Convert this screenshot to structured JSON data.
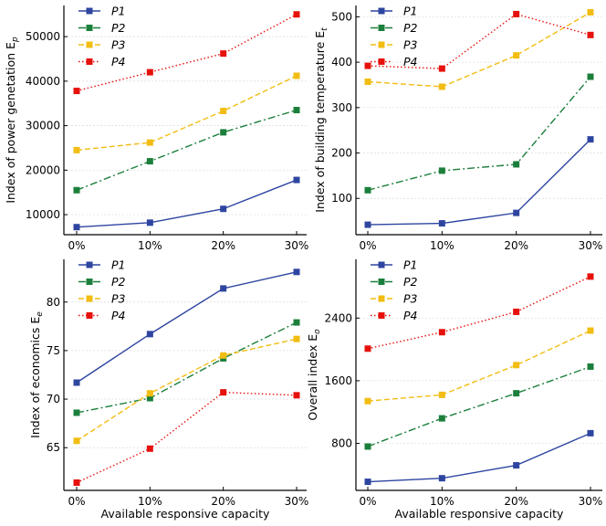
{
  "chart_data": [
    {
      "type": "line",
      "ylabel_main": "Index of power genetation E",
      "ylabel_sub": "p",
      "xlabel": "",
      "categories": [
        "0%",
        "10%",
        "20%",
        "30%"
      ],
      "ylim": [
        5500,
        57000
      ],
      "yticks": [
        10000,
        20000,
        30000,
        40000,
        50000
      ],
      "series": [
        {
          "name": "P1",
          "values": [
            7200,
            8200,
            11300,
            17800
          ]
        },
        {
          "name": "P2",
          "values": [
            15500,
            22000,
            28500,
            33500
          ]
        },
        {
          "name": "P3",
          "values": [
            24500,
            26200,
            33300,
            41200
          ]
        },
        {
          "name": "P4",
          "values": [
            37800,
            42000,
            46200,
            55000
          ]
        }
      ]
    },
    {
      "type": "line",
      "ylabel_main": "Index of building temperature E",
      "ylabel_sub": "t",
      "xlabel": "",
      "categories": [
        "0%",
        "10%",
        "20%",
        "30%"
      ],
      "ylim": [
        20,
        525
      ],
      "yticks": [
        100,
        200,
        300,
        400,
        500
      ],
      "series": [
        {
          "name": "P1",
          "values": [
            42,
            45,
            68,
            230
          ]
        },
        {
          "name": "P2",
          "values": [
            118,
            161,
            175,
            368
          ]
        },
        {
          "name": "P3",
          "values": [
            357,
            346,
            415,
            510
          ]
        },
        {
          "name": "P4",
          "values": [
            392,
            386,
            506,
            460
          ]
        }
      ]
    },
    {
      "type": "line",
      "ylabel_main": "Index of economics E",
      "ylabel_sub": "e",
      "xlabel": "Available responsive capacity",
      "categories": [
        "0%",
        "10%",
        "20%",
        "30%"
      ],
      "ylim": [
        60.6,
        84.4
      ],
      "yticks": [
        65,
        70,
        75,
        80
      ],
      "series": [
        {
          "name": "P1",
          "values": [
            71.7,
            76.7,
            81.4,
            83.1
          ]
        },
        {
          "name": "P2",
          "values": [
            68.6,
            70.1,
            74.2,
            77.9
          ]
        },
        {
          "name": "P3",
          "values": [
            65.7,
            70.6,
            74.5,
            76.2
          ]
        },
        {
          "name": "P4",
          "values": [
            61.4,
            64.9,
            70.7,
            70.4
          ]
        }
      ]
    },
    {
      "type": "line",
      "ylabel_main": "Overall index E",
      "ylabel_sub": "o",
      "xlabel": "Available responsive capacity",
      "categories": [
        "0%",
        "10%",
        "20%",
        "30%"
      ],
      "ylim": [
        200,
        3150
      ],
      "yticks": [
        800,
        1600,
        2400
      ],
      "series": [
        {
          "name": "P1",
          "values": [
            310,
            355,
            520,
            930
          ]
        },
        {
          "name": "P2",
          "values": [
            760,
            1120,
            1440,
            1780
          ]
        },
        {
          "name": "P3",
          "values": [
            1340,
            1420,
            1800,
            2240
          ]
        },
        {
          "name": "P4",
          "values": [
            2010,
            2220,
            2480,
            2930
          ]
        }
      ]
    }
  ],
  "legend": [
    "P1",
    "P2",
    "P3",
    "P4"
  ],
  "colors": {
    "P1": "#2e45a0",
    "P2": "#1b7f3b",
    "P3": "#f2bd12",
    "P4": "#e6110c"
  },
  "dashes": {
    "P1": "",
    "P2": "8,3,2,3",
    "P3": "6,3",
    "P4": "1.5,2.5"
  }
}
